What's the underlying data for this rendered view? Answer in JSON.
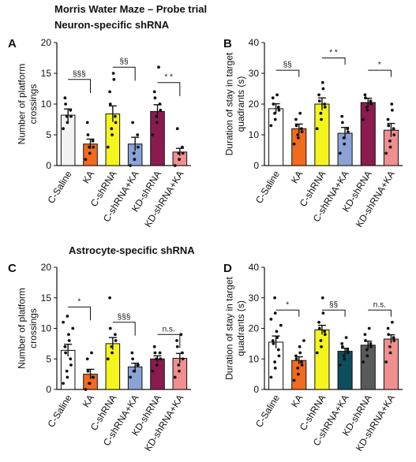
{
  "figure": {
    "title": "Morris Water Maze – Probe trial",
    "section_top": "Neuron-specific shRNA",
    "section_bottom": "Astrocyte-specific shRNA"
  },
  "chart_data": [
    {
      "type": "bar",
      "panel": "A",
      "ylabel": "Number of platform crossings",
      "ylim": [
        0,
        20
      ],
      "yticks": [
        0,
        5,
        10,
        15,
        20
      ],
      "categories": [
        "C-Saline",
        "KA",
        "C-shRNA",
        "C-shRNA+KA",
        "KD-shRNA",
        "KD-shRNA+KA"
      ],
      "values": [
        8.2,
        3.5,
        8.4,
        3.5,
        8.8,
        2.2
      ],
      "sem": [
        1.0,
        0.8,
        1.3,
        1.1,
        1.1,
        0.6
      ],
      "colors": [
        "#f2f2f2",
        "#f26b1d",
        "#f5f51e",
        "#8aa3d6",
        "#8b1a4f",
        "#f08f8f"
      ],
      "points": [
        [
          6,
          7,
          8,
          8,
          9,
          10,
          11
        ],
        [
          1,
          2,
          3,
          3,
          4,
          5,
          7
        ],
        [
          3,
          5,
          6,
          7,
          8,
          10,
          12,
          14,
          15
        ],
        [
          0,
          1,
          2,
          3,
          5,
          7
        ],
        [
          5,
          7,
          8,
          9,
          10,
          11,
          12,
          16
        ],
        [
          0,
          1,
          2,
          2,
          3,
          6
        ]
      ],
      "annotations": [
        {
          "from": 0,
          "to": 1,
          "label": "§§§",
          "level": 14
        },
        {
          "from": 2,
          "to": 3,
          "label": "§§",
          "level": 16
        },
        {
          "from": 4,
          "to": 5,
          "label": "* *",
          "level": 13.5
        }
      ]
    },
    {
      "type": "bar",
      "panel": "B",
      "ylabel": "Duration of stay in target quadrants (s)",
      "ylim": [
        0,
        40
      ],
      "yticks": [
        0,
        10,
        20,
        30,
        40
      ],
      "categories": [
        "C-Saline",
        "KA",
        "C-shRNA",
        "C-shRNA+KA",
        "KD-shRNA",
        "KD-shRNA+KA"
      ],
      "values": [
        18.5,
        12.0,
        20.0,
        10.5,
        20.5,
        11.5
      ],
      "sem": [
        1.6,
        1.5,
        2.0,
        1.9,
        1.4,
        2.2
      ],
      "colors": [
        "#ffffff",
        "#f26b1d",
        "#f5f51e",
        "#8aa3d6",
        "#8b1a4f",
        "#f08f8f"
      ],
      "points": [
        [
          13,
          15,
          17,
          18,
          19,
          20,
          22,
          23
        ],
        [
          7,
          9,
          10,
          11,
          12,
          13,
          15,
          17
        ],
        [
          12,
          15,
          17,
          19,
          20,
          21,
          23,
          25,
          27
        ],
        [
          4,
          7,
          9,
          11,
          12,
          14,
          16
        ],
        [
          15,
          18,
          19,
          20,
          21,
          22,
          23
        ],
        [
          4,
          6,
          8,
          10,
          12,
          13,
          15,
          18,
          20
        ]
      ],
      "annotations": [
        {
          "from": 0,
          "to": 1,
          "label": "§§",
          "level": 31
        },
        {
          "from": 2,
          "to": 3,
          "label": "* *",
          "level": 35
        },
        {
          "from": 4,
          "to": 5,
          "label": "*",
          "level": 31
        }
      ]
    },
    {
      "type": "bar",
      "panel": "C",
      "ylabel": "Number of platform crossings",
      "ylim": [
        0,
        20
      ],
      "yticks": [
        0,
        5,
        10,
        15,
        20
      ],
      "categories": [
        "C-Saline",
        "KA",
        "C-shRNA",
        "C-shRNA+KA",
        "KD-shRNA",
        "KD-shRNA+KA"
      ],
      "values": [
        6.4,
        2.5,
        7.5,
        3.7,
        5.0,
        5.1
      ],
      "sem": [
        1.0,
        0.8,
        1.0,
        0.6,
        0.5,
        0.8
      ],
      "colors": [
        "#ffffff",
        "#f26b1d",
        "#f5f51e",
        "#8aa3d6",
        "#8b1a4f",
        "#f08f8f"
      ],
      "points": [
        [
          1,
          2,
          3,
          4,
          5,
          6,
          7,
          8,
          9,
          10,
          11,
          12
        ],
        [
          0,
          1,
          1,
          2,
          2,
          3,
          5,
          6
        ],
        [
          5,
          6,
          7,
          8,
          9,
          10,
          15
        ],
        [
          2,
          3,
          3,
          4,
          4,
          5,
          6
        ],
        [
          3,
          4,
          5,
          5,
          6,
          6,
          7
        ],
        [
          2,
          3,
          4,
          5,
          6,
          7,
          8,
          9
        ]
      ],
      "annotations": [
        {
          "from": 0,
          "to": 1,
          "label": "*",
          "level": 13.5
        },
        {
          "from": 2,
          "to": 3,
          "label": "§§§",
          "level": 11
        },
        {
          "from": 4,
          "to": 5,
          "label": "n.s.",
          "level": 9
        }
      ]
    },
    {
      "type": "bar",
      "panel": "D",
      "ylabel": "Duration of stay in target quadrants (s)",
      "ylim": [
        0,
        40
      ],
      "yticks": [
        0,
        10,
        20,
        30,
        40
      ],
      "categories": [
        "C-Saline",
        "KA",
        "C-shRNA",
        "C-shRNA+KA",
        "KD-shRNA",
        "KD-shRNA+KA"
      ],
      "values": [
        15.5,
        9.5,
        19.5,
        12.5,
        14.5,
        16.5
      ],
      "sem": [
        2.0,
        1.2,
        1.5,
        1.0,
        1.3,
        1.4
      ],
      "colors": [
        "#ffffff",
        "#f26b1d",
        "#f5f51e",
        "#0e4d5c",
        "#5a5a5a",
        "#f08f8f"
      ],
      "points": [
        [
          4,
          7,
          9,
          11,
          13,
          15,
          16,
          17,
          19,
          21,
          23,
          25,
          30
        ],
        [
          3,
          5,
          7,
          8,
          9,
          10,
          11,
          12,
          14,
          16
        ],
        [
          12,
          14,
          16,
          18,
          19,
          20,
          22,
          25,
          30
        ],
        [
          8,
          10,
          11,
          12,
          13,
          14,
          15,
          17
        ],
        [
          9,
          11,
          13,
          14,
          15,
          16,
          18,
          20
        ],
        [
          9,
          12,
          14,
          16,
          17,
          18,
          20,
          22
        ]
      ],
      "annotations": [
        {
          "from": 0,
          "to": 1,
          "label": "*",
          "level": 26
        },
        {
          "from": 2,
          "to": 3,
          "label": "§§",
          "level": 26
        },
        {
          "from": 4,
          "to": 5,
          "label": "n.s.",
          "level": 26
        }
      ]
    }
  ]
}
